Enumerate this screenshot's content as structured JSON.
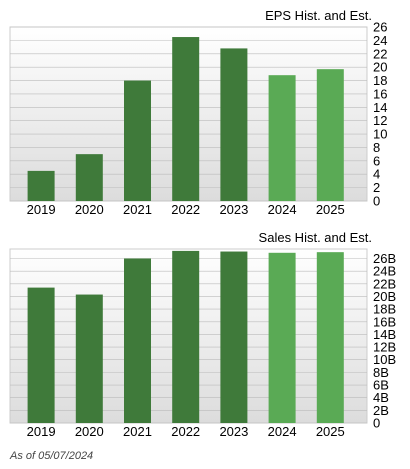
{
  "colors": {
    "historical_bar": "#3f7a3a",
    "estimate_bar": "#5aaa55",
    "plot_background_top": "#ffffff",
    "plot_background_bottom": "#dcdcdc",
    "grid": "#bbbbbb"
  },
  "chart_data": [
    {
      "type": "bar",
      "title": "EPS Hist. and Est.",
      "categories": [
        "2019",
        "2020",
        "2021",
        "2022",
        "2023",
        "2024",
        "2025"
      ],
      "values": [
        4.5,
        7.0,
        18.0,
        24.5,
        22.8,
        18.8,
        19.7
      ],
      "estimate_flags": [
        false,
        false,
        false,
        false,
        false,
        true,
        true
      ],
      "ylim": [
        0,
        26
      ],
      "y_ticks": [
        "0",
        "2",
        "4",
        "6",
        "8",
        "10",
        "12",
        "14",
        "16",
        "18",
        "20",
        "22",
        "24",
        "26"
      ],
      "y_axis_side": "right",
      "grid": true
    },
    {
      "type": "bar",
      "title": "Sales Hist. and Est.",
      "categories": [
        "2019",
        "2020",
        "2021",
        "2022",
        "2023",
        "2024",
        "2025"
      ],
      "values": [
        21.4,
        20.3,
        26.0,
        27.2,
        27.1,
        26.9,
        27.0
      ],
      "unit": "B",
      "estimate_flags": [
        false,
        false,
        false,
        false,
        false,
        true,
        true
      ],
      "ylim": [
        0,
        27.5
      ],
      "y_ticks": [
        "0",
        "2B",
        "4B",
        "6B",
        "8B",
        "10B",
        "12B",
        "14B",
        "16B",
        "18B",
        "20B",
        "22B",
        "24B",
        "26B"
      ],
      "y_axis_side": "right",
      "grid": true
    }
  ],
  "footer": {
    "as_of": "As of 05/07/2024"
  }
}
